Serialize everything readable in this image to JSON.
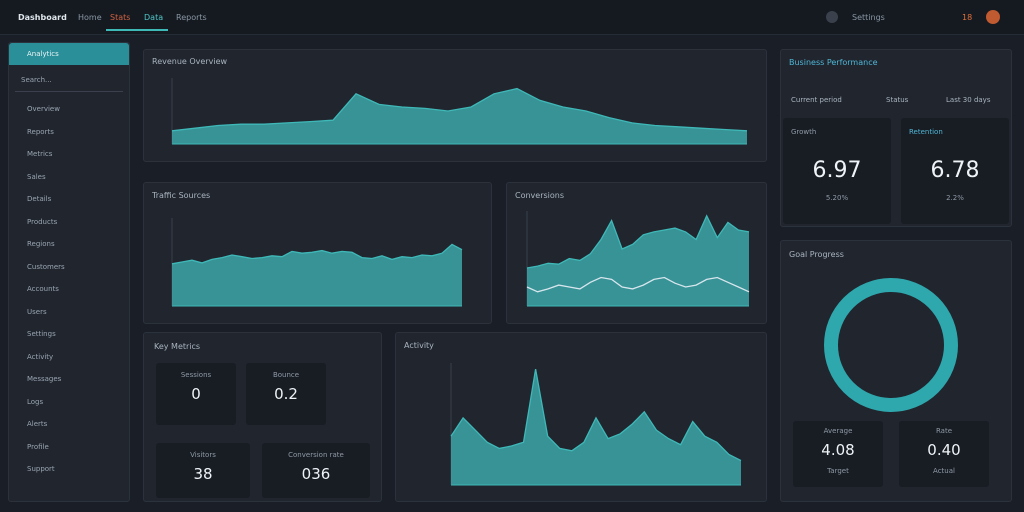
{
  "header": {
    "brand": "Dashboard",
    "nav": [
      "Home",
      "Stats",
      "Data",
      "Reports"
    ],
    "user": "Settings",
    "badge": "18"
  },
  "sidebar": {
    "title": "Analytics",
    "search": "Search...",
    "items": [
      "Overview",
      "Reports",
      "Metrics",
      "Sales",
      "Details",
      "Products",
      "Regions",
      "Customers",
      "Accounts",
      "Users",
      "Settings",
      "Activity",
      "Messages",
      "Logs",
      "Alerts",
      "Profile",
      "Support"
    ]
  },
  "chart_data": [
    {
      "type": "area",
      "title": "Revenue Overview",
      "color": "#3fb8b8",
      "ylim": [
        0,
        50
      ],
      "values": [
        10,
        12,
        14,
        15,
        15,
        16,
        17,
        18,
        38,
        30,
        28,
        27,
        25,
        28,
        38,
        42,
        33,
        28,
        25,
        20,
        16,
        14,
        13,
        12,
        11,
        10
      ]
    },
    {
      "type": "area",
      "title": "Traffic Sources",
      "color": "#3fb8b8",
      "ylim": [
        0,
        100
      ],
      "values": [
        48,
        50,
        52,
        49,
        53,
        55,
        58,
        56,
        54,
        55,
        57,
        56,
        62,
        60,
        61,
        63,
        60,
        62,
        61,
        55,
        54,
        57,
        53,
        56,
        55,
        58,
        57,
        60,
        70,
        64
      ]
    },
    {
      "type": "multi",
      "title": "Conversions",
      "ylim": [
        0,
        100
      ],
      "series": [
        {
          "color": "#3fb8b8",
          "values": [
            40,
            42,
            45,
            44,
            50,
            48,
            55,
            70,
            90,
            60,
            65,
            75,
            78,
            80,
            82,
            78,
            70,
            95,
            72,
            88,
            80,
            78
          ]
        },
        {
          "color": "#d7e6ee",
          "values": [
            20,
            15,
            18,
            22,
            20,
            18,
            25,
            30,
            28,
            20,
            18,
            22,
            28,
            30,
            24,
            20,
            22,
            28,
            30,
            25,
            20,
            15
          ]
        }
      ]
    },
    {
      "type": "area",
      "title": "Activity",
      "color": "#3fb8b8",
      "ylim": [
        0,
        100
      ],
      "values": [
        40,
        55,
        45,
        35,
        30,
        32,
        35,
        95,
        40,
        30,
        28,
        35,
        55,
        38,
        42,
        50,
        60,
        45,
        38,
        33,
        52,
        40,
        35,
        25,
        20
      ]
    }
  ],
  "stats": {
    "title": "Key Metrics",
    "tiles": [
      {
        "label": "Sessions",
        "value": "0"
      },
      {
        "label": "Bounce",
        "value": "0.2"
      },
      {
        "label": "Visitors",
        "value": "38"
      },
      {
        "label": "Conversion rate",
        "value": "036"
      }
    ]
  },
  "summary": {
    "title": "Business Performance",
    "sub": [
      "Current period",
      "Status",
      "Last 30 days"
    ],
    "cards": [
      {
        "label": "Growth",
        "value": "6.97",
        "sub": "5.20%"
      },
      {
        "label": "Retention",
        "value": "6.78",
        "sub": "2.2%"
      }
    ]
  },
  "ring": {
    "title": "Goal Progress",
    "cards": [
      {
        "label": "Average",
        "value": "4.08",
        "sub": "Target"
      },
      {
        "label": "Rate",
        "value": "0.40",
        "sub": "Actual"
      }
    ]
  }
}
